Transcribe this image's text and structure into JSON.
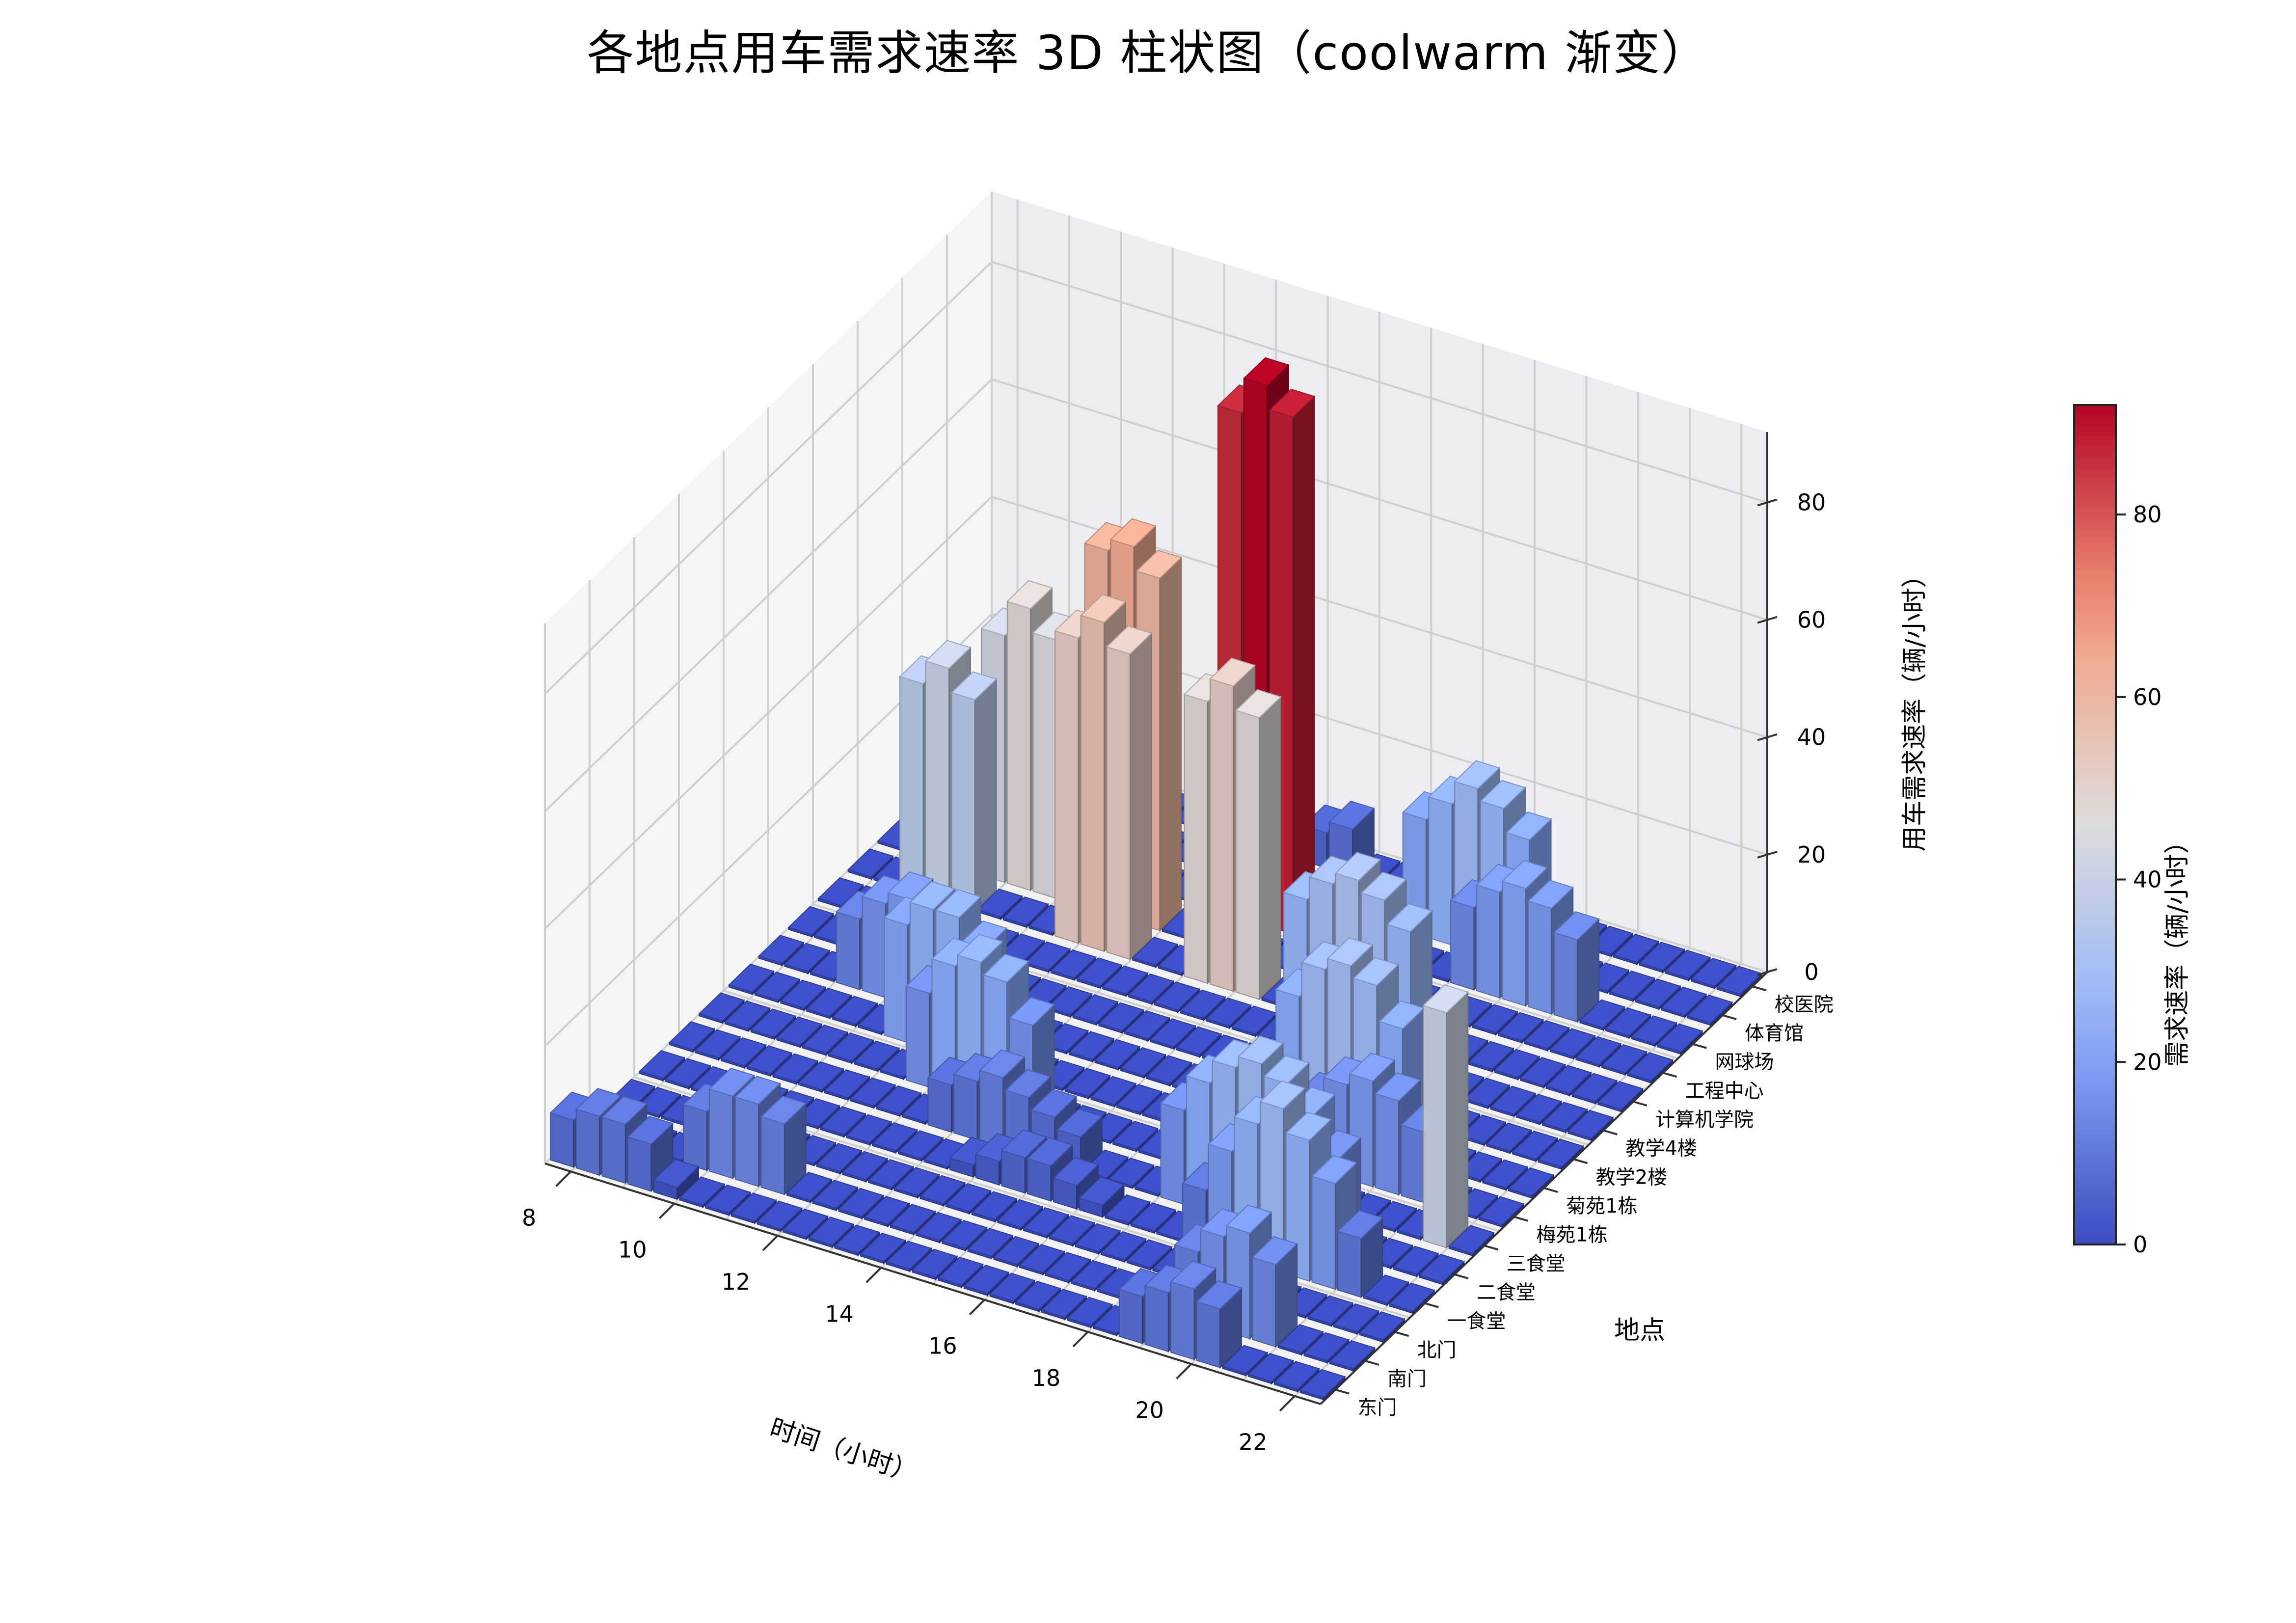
{
  "chart_data": {
    "type": "bar3d",
    "title": "各地点用车需求速率 3D 柱状图（coolwarm 渐变）",
    "xlabel": "时间（小时）",
    "ylabel": "地点",
    "zlabel": "用车需求速率（辆/小时）",
    "colorbar_label": "需求速率（辆/小时）",
    "colormap": "coolwarm",
    "x_ticks": [
      8,
      10,
      12,
      14,
      16,
      18,
      20,
      22
    ],
    "z_ticks": [
      0,
      20,
      40,
      60,
      80
    ],
    "colorbar_ticks": [
      0,
      20,
      40,
      60,
      80
    ],
    "zlim": [
      0,
      92
    ],
    "color_range": [
      0,
      92
    ],
    "hours": [
      7.5,
      8,
      8.5,
      9,
      9.5,
      10,
      10.5,
      11,
      11.5,
      12,
      12.5,
      13,
      13.5,
      14,
      14.5,
      15,
      15.5,
      16,
      16.5,
      17,
      17.5,
      18,
      18.5,
      19,
      19.5,
      20,
      20.5,
      21,
      21.5,
      22
    ],
    "locations": [
      "东门",
      "南门",
      "北门",
      "一食堂",
      "二食堂",
      "三食堂",
      "梅苑1栋",
      "菊苑1栋",
      "教学2楼",
      "教学4楼",
      "计算机学院",
      "工程中心",
      "网球场",
      "体育馆",
      "校医院"
    ],
    "series": [
      {
        "name": "东门",
        "values": [
          8,
          10,
          10,
          8,
          2,
          0,
          0,
          0,
          0,
          0,
          0,
          0,
          0,
          0,
          0,
          0,
          0,
          0,
          0,
          0,
          0,
          0,
          8,
          10,
          12,
          10,
          0,
          0,
          0,
          0
        ]
      },
      {
        "name": "南门",
        "values": [
          0,
          0,
          0,
          0,
          10,
          14,
          14,
          12,
          0,
          0,
          0,
          0,
          0,
          0,
          0,
          0,
          0,
          0,
          0,
          0,
          0,
          0,
          0,
          12,
          16,
          18,
          14,
          0,
          0,
          0
        ]
      },
      {
        "name": "北门",
        "values": [
          0,
          0,
          0,
          0,
          0,
          0,
          0,
          0,
          0,
          0,
          0,
          0,
          0,
          0,
          0,
          0,
          0,
          0,
          0,
          0,
          0,
          0,
          0,
          0,
          0,
          0,
          0,
          0,
          0,
          0
        ]
      },
      {
        "name": "一食堂",
        "values": [
          0,
          0,
          0,
          0,
          0,
          0,
          0,
          0,
          0,
          0,
          0,
          0,
          2,
          4,
          6,
          6,
          4,
          2,
          0,
          0,
          0,
          10,
          18,
          24,
          28,
          24,
          18,
          10,
          0,
          0
        ]
      },
      {
        "name": "二食堂",
        "values": [
          0,
          0,
          0,
          0,
          0,
          0,
          0,
          0,
          0,
          0,
          8,
          10,
          12,
          10,
          8,
          6,
          0,
          0,
          0,
          16,
          22,
          26,
          28,
          26,
          22,
          16,
          0,
          0,
          0,
          0
        ]
      },
      {
        "name": "三食堂",
        "values": [
          0,
          0,
          0,
          0,
          0,
          0,
          0,
          0,
          16,
          22,
          24,
          22,
          16,
          0,
          0,
          0,
          0,
          0,
          0,
          0,
          0,
          0,
          0,
          0,
          0,
          0,
          0,
          0,
          40,
          0
        ]
      },
      {
        "name": "梅苑1栋",
        "values": [
          0,
          0,
          0,
          0,
          0,
          0,
          20,
          24,
          24,
          20,
          0,
          0,
          0,
          0,
          0,
          0,
          0,
          0,
          0,
          0,
          0,
          0,
          12,
          16,
          18,
          16,
          12,
          0,
          0,
          0
        ]
      },
      {
        "name": "菊苑1栋",
        "values": [
          0,
          0,
          0,
          12,
          16,
          18,
          16,
          12,
          0,
          0,
          0,
          0,
          0,
          0,
          0,
          0,
          0,
          0,
          0,
          0,
          22,
          28,
          30,
          28,
          22,
          0,
          0,
          0,
          0,
          0
        ]
      },
      {
        "name": "教学2楼",
        "values": [
          0,
          0,
          0,
          0,
          0,
          0,
          0,
          0,
          0,
          0,
          0,
          0,
          0,
          0,
          0,
          0,
          0,
          0,
          0,
          0,
          0,
          0,
          0,
          0,
          0,
          0,
          0,
          0,
          0,
          0
        ]
      },
      {
        "name": "教学4楼",
        "values": [
          0,
          0,
          0,
          0,
          0,
          0,
          0,
          0,
          0,
          0,
          0,
          0,
          0,
          0,
          0,
          0,
          0,
          0,
          26,
          30,
          32,
          30,
          26,
          0,
          0,
          0,
          0,
          0,
          0,
          0
        ]
      },
      {
        "name": "计算机学院",
        "values": [
          0,
          0,
          36,
          40,
          36,
          0,
          0,
          0,
          52,
          56,
          52,
          0,
          0,
          48,
          52,
          48,
          0,
          0,
          0,
          0,
          0,
          0,
          0,
          0,
          0,
          0,
          0,
          0,
          0,
          0
        ]
      },
      {
        "name": "工程中心",
        "values": [
          0,
          0,
          0,
          0,
          42,
          48,
          44,
          0,
          62,
          64,
          60,
          0,
          0,
          0,
          0,
          0,
          0,
          0,
          0,
          0,
          0,
          0,
          0,
          0,
          0,
          0,
          0,
          0,
          0,
          0
        ]
      },
      {
        "name": "网球场",
        "values": [
          0,
          0,
          0,
          0,
          0,
          0,
          0,
          0,
          0,
          0,
          0,
          0,
          86,
          92,
          88,
          0,
          0,
          0,
          0,
          0,
          0,
          14,
          18,
          20,
          18,
          14,
          0,
          0,
          0,
          0
        ]
      },
      {
        "name": "体育馆",
        "values": [
          0,
          0,
          0,
          0,
          0,
          0,
          0,
          0,
          0,
          0,
          0,
          0,
          0,
          0,
          0,
          0,
          0,
          0,
          20,
          24,
          28,
          26,
          22,
          0,
          0,
          0,
          0,
          0,
          0,
          0
        ]
      },
      {
        "name": "校医院",
        "values": [
          0,
          0,
          0,
          0,
          0,
          0,
          0,
          0,
          0,
          0,
          0,
          0,
          4,
          6,
          8,
          0,
          0,
          0,
          0,
          0,
          0,
          0,
          0,
          0,
          0,
          0,
          0,
          0,
          0,
          0
        ]
      }
    ]
  }
}
